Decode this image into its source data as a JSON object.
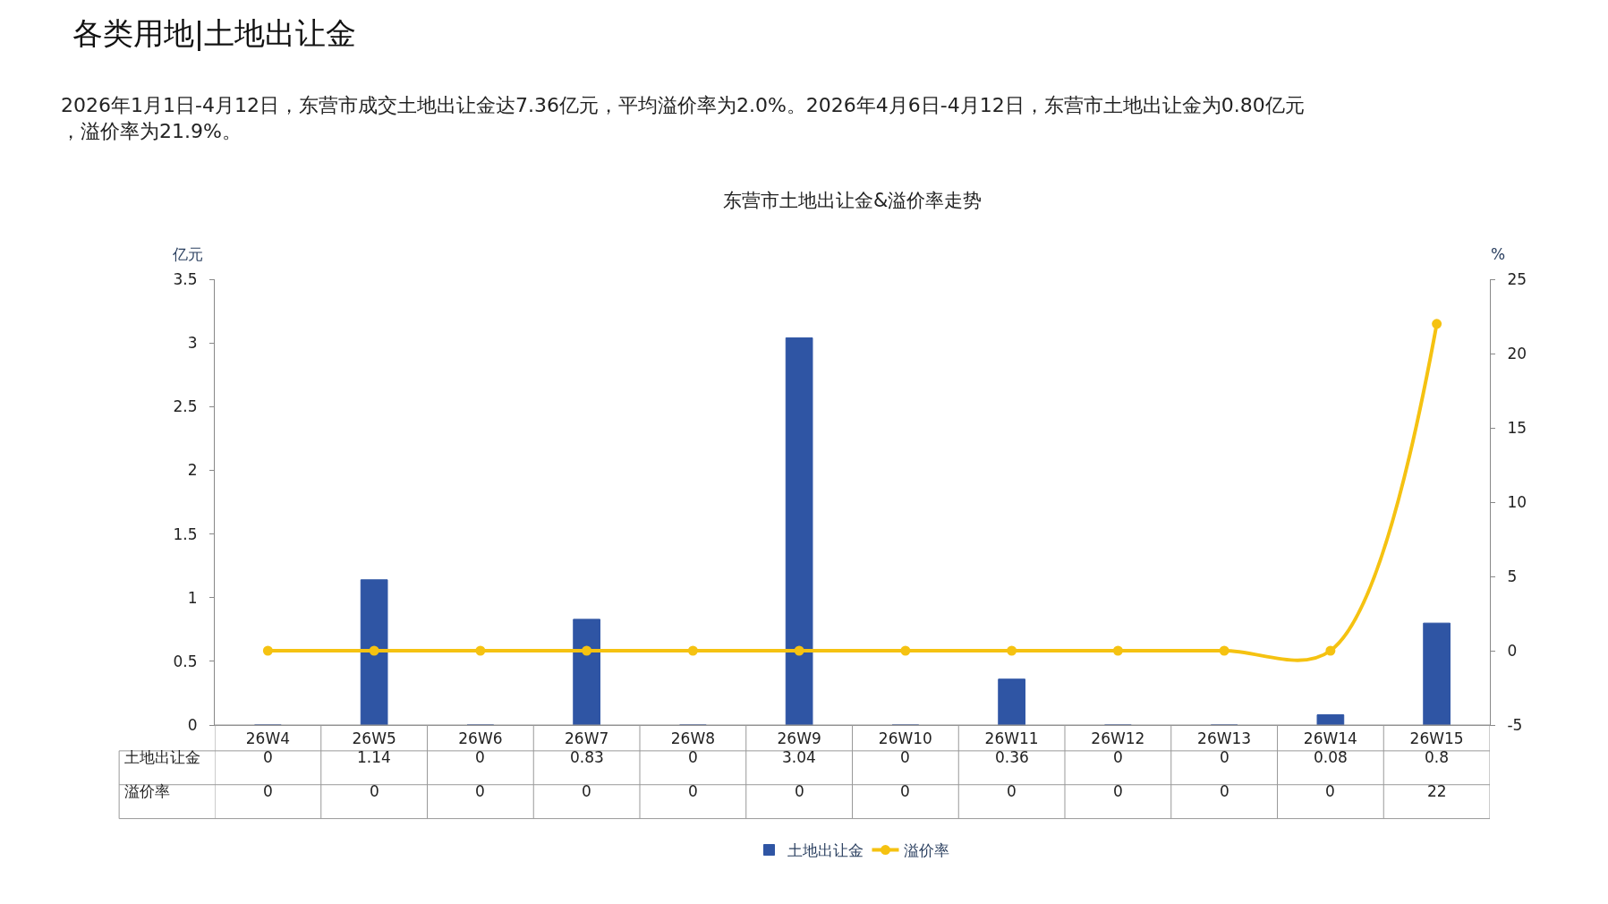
{
  "chart_data": {
    "type": "bar",
    "title": "各类用地|土地出让金",
    "subtitle": "2026年1月1日-4月12日，东营市成交土地出让金达7.36亿元，平均溢价率为2.0%。2026年4月6日-4月12日，东营市土地出让金为0.80亿元，溢价率为21.9%。",
    "annotations": [
      "东营市土地出让金&溢价率走势"
    ],
    "ylabel": "亿元",
    "y2label": "%",
    "categories": [
      "26W4",
      "26W5",
      "26W6",
      "26W7",
      "26W8",
      "26W9",
      "26W10",
      "26W11",
      "26W12",
      "26W13",
      "26W14",
      "26W15"
    ],
    "series": [
      {
        "name": "土地出让金",
        "color": "#2f55a4",
        "values": [
          0,
          1.14,
          0,
          0.83,
          0,
          3.04,
          0,
          0.36,
          0,
          0,
          0.08,
          0.8
        ]
      },
      {
        "name": "溢价率",
        "type": "line",
        "axis": "y2",
        "color": "#f5c211",
        "marker": "circle",
        "line_style": "solid",
        "values": [
          0,
          0,
          0,
          0,
          0,
          0,
          0,
          0,
          0,
          0,
          0,
          22
        ]
      }
    ],
    "ylim": [
      0,
      3.5
    ],
    "yticks": [
      0,
      0.5,
      1,
      1.5,
      2,
      2.5,
      3,
      3.5
    ],
    "y2lim": [
      -5,
      25
    ],
    "y2ticks": [
      -5,
      0,
      5,
      10,
      15,
      20,
      25
    ],
    "data_labels": true,
    "legend": "bottom"
  }
}
